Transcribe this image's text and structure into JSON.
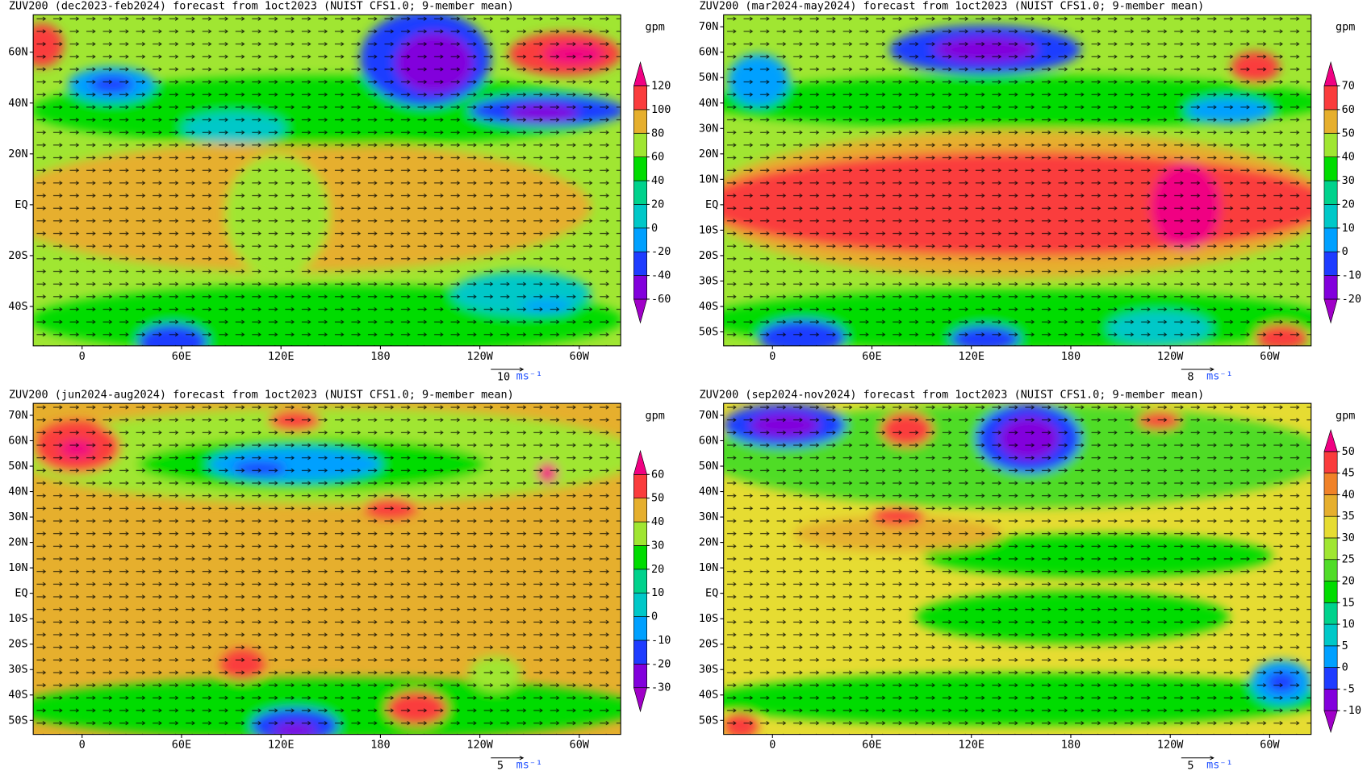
{
  "panels": [
    {
      "title": "ZUV200 (dec2023-feb2024) forecast from 1oct2023 (NUIST CFS1.0; 9-member mean)",
      "unit": "gpm",
      "xlim": [
        -29.5,
        325
      ],
      "ylim": [
        -55.5,
        74.7
      ],
      "xticks": [
        0,
        {
          "value": 60,
          "label": "60E"
        },
        {
          "value": 120,
          "label": "120E"
        },
        180,
        {
          "value": 240,
          "label": "120W"
        },
        {
          "value": 300,
          "label": "60W"
        }
      ],
      "yticks": [
        {
          "value": 60,
          "label": "60N"
        },
        {
          "value": 40,
          "label": "40N"
        },
        {
          "value": 20,
          "label": "20N"
        },
        {
          "value": 0,
          "label": "EQ"
        },
        {
          "value": -20,
          "label": "20S"
        },
        {
          "value": -40,
          "label": "40S"
        }
      ],
      "levels": [
        -60,
        -40,
        -20,
        0,
        20,
        40,
        60,
        80,
        100,
        120
      ],
      "colors": [
        "#a000c8",
        "#8200dc",
        "#1e3cff",
        "#00a0ff",
        "#00c8c8",
        "#00d28c",
        "#00dc00",
        "#a0e632",
        "#e6af2d",
        "#fa3c3c",
        "#f00082"
      ],
      "vector_ref": {
        "value": 10,
        "unit": "ms⁻¹"
      }
    },
    {
      "title": "ZUV200 (mar2024-may2024) forecast from 1oct2023 (NUIST CFS1.0; 9-member mean)",
      "unit": "gpm",
      "xlim": [
        -29.5,
        325
      ],
      "ylim": [
        -55.5,
        74.7
      ],
      "xticks": [
        0,
        {
          "value": 60,
          "label": "60E"
        },
        {
          "value": 120,
          "label": "120E"
        },
        180,
        {
          "value": 240,
          "label": "120W"
        },
        {
          "value": 300,
          "label": "60W"
        }
      ],
      "yticks": [
        {
          "value": 70,
          "label": "70N"
        },
        {
          "value": 60,
          "label": "60N"
        },
        {
          "value": 50,
          "label": "50N"
        },
        {
          "value": 40,
          "label": "40N"
        },
        {
          "value": 30,
          "label": "30N"
        },
        {
          "value": 20,
          "label": "20N"
        },
        {
          "value": 10,
          "label": "10N"
        },
        {
          "value": 0,
          "label": "EQ"
        },
        {
          "value": -10,
          "label": "10S"
        },
        {
          "value": -20,
          "label": "20S"
        },
        {
          "value": -30,
          "label": "30S"
        },
        {
          "value": -40,
          "label": "40S"
        },
        {
          "value": -50,
          "label": "50S"
        }
      ],
      "levels": [
        -20,
        -10,
        0,
        10,
        20,
        30,
        40,
        50,
        60,
        70
      ],
      "colors": [
        "#a000c8",
        "#8200dc",
        "#1e3cff",
        "#00a0ff",
        "#00c8c8",
        "#00d28c",
        "#00dc00",
        "#a0e632",
        "#e6af2d",
        "#fa3c3c",
        "#f00082"
      ],
      "vector_ref": {
        "value": 8,
        "unit": "ms⁻¹"
      }
    },
    {
      "title": "ZUV200 (jun2024-aug2024) forecast from 1oct2023 (NUIST CFS1.0; 9-member mean)",
      "unit": "gpm",
      "xlim": [
        -29.5,
        325
      ],
      "ylim": [
        -55.5,
        74.7
      ],
      "xticks": [
        0,
        {
          "value": 60,
          "label": "60E"
        },
        {
          "value": 120,
          "label": "120E"
        },
        180,
        {
          "value": 240,
          "label": "120W"
        },
        {
          "value": 300,
          "label": "60W"
        }
      ],
      "yticks": [
        {
          "value": 70,
          "label": "70N"
        },
        {
          "value": 60,
          "label": "60N"
        },
        {
          "value": 50,
          "label": "50N"
        },
        {
          "value": 40,
          "label": "40N"
        },
        {
          "value": 30,
          "label": "30N"
        },
        {
          "value": 20,
          "label": "20N"
        },
        {
          "value": 10,
          "label": "10N"
        },
        {
          "value": 0,
          "label": "EQ"
        },
        {
          "value": -10,
          "label": "10S"
        },
        {
          "value": -20,
          "label": "20S"
        },
        {
          "value": -30,
          "label": "30S"
        },
        {
          "value": -40,
          "label": "40S"
        },
        {
          "value": -50,
          "label": "50S"
        }
      ],
      "levels": [
        -30,
        -20,
        -10,
        0,
        10,
        20,
        30,
        40,
        50,
        60
      ],
      "colors": [
        "#a000c8",
        "#8200dc",
        "#1e3cff",
        "#00a0ff",
        "#00c8c8",
        "#00d28c",
        "#00dc00",
        "#a0e632",
        "#e6af2d",
        "#fa3c3c",
        "#f00082"
      ],
      "vector_ref": {
        "value": 5,
        "unit": "ms⁻¹"
      }
    },
    {
      "title": "ZUV200 (sep2024-nov2024) forecast from 1oct2023 (NUIST CFS1.0; 9-member mean)",
      "unit": "gpm",
      "xlim": [
        -29.5,
        325
      ],
      "ylim": [
        -55.5,
        74.7
      ],
      "xticks": [
        0,
        {
          "value": 60,
          "label": "60E"
        },
        {
          "value": 120,
          "label": "120E"
        },
        180,
        {
          "value": 240,
          "label": "120W"
        },
        {
          "value": 300,
          "label": "60W"
        }
      ],
      "yticks": [
        {
          "value": 70,
          "label": "70N"
        },
        {
          "value": 60,
          "label": "60N"
        },
        {
          "value": 50,
          "label": "50N"
        },
        {
          "value": 40,
          "label": "40N"
        },
        {
          "value": 30,
          "label": "30N"
        },
        {
          "value": 20,
          "label": "20N"
        },
        {
          "value": 10,
          "label": "10N"
        },
        {
          "value": 0,
          "label": "EQ"
        },
        {
          "value": -10,
          "label": "10S"
        },
        {
          "value": -20,
          "label": "20S"
        },
        {
          "value": -30,
          "label": "30S"
        },
        {
          "value": -40,
          "label": "40S"
        },
        {
          "value": -50,
          "label": "50S"
        }
      ],
      "levels": [
        -10,
        -5,
        0,
        5,
        10,
        15,
        20,
        25,
        30,
        35,
        40,
        45,
        50
      ],
      "colors": [
        "#a000c8",
        "#8200dc",
        "#1e3cff",
        "#00a0ff",
        "#00c8c8",
        "#00d28c",
        "#00dc00",
        "#50dc28",
        "#a0e632",
        "#e6dc32",
        "#e6af2d",
        "#f08228",
        "#fa3c3c",
        "#f00082"
      ],
      "vector_ref": {
        "value": 5,
        "unit": "ms⁻¹"
      }
    }
  ]
}
